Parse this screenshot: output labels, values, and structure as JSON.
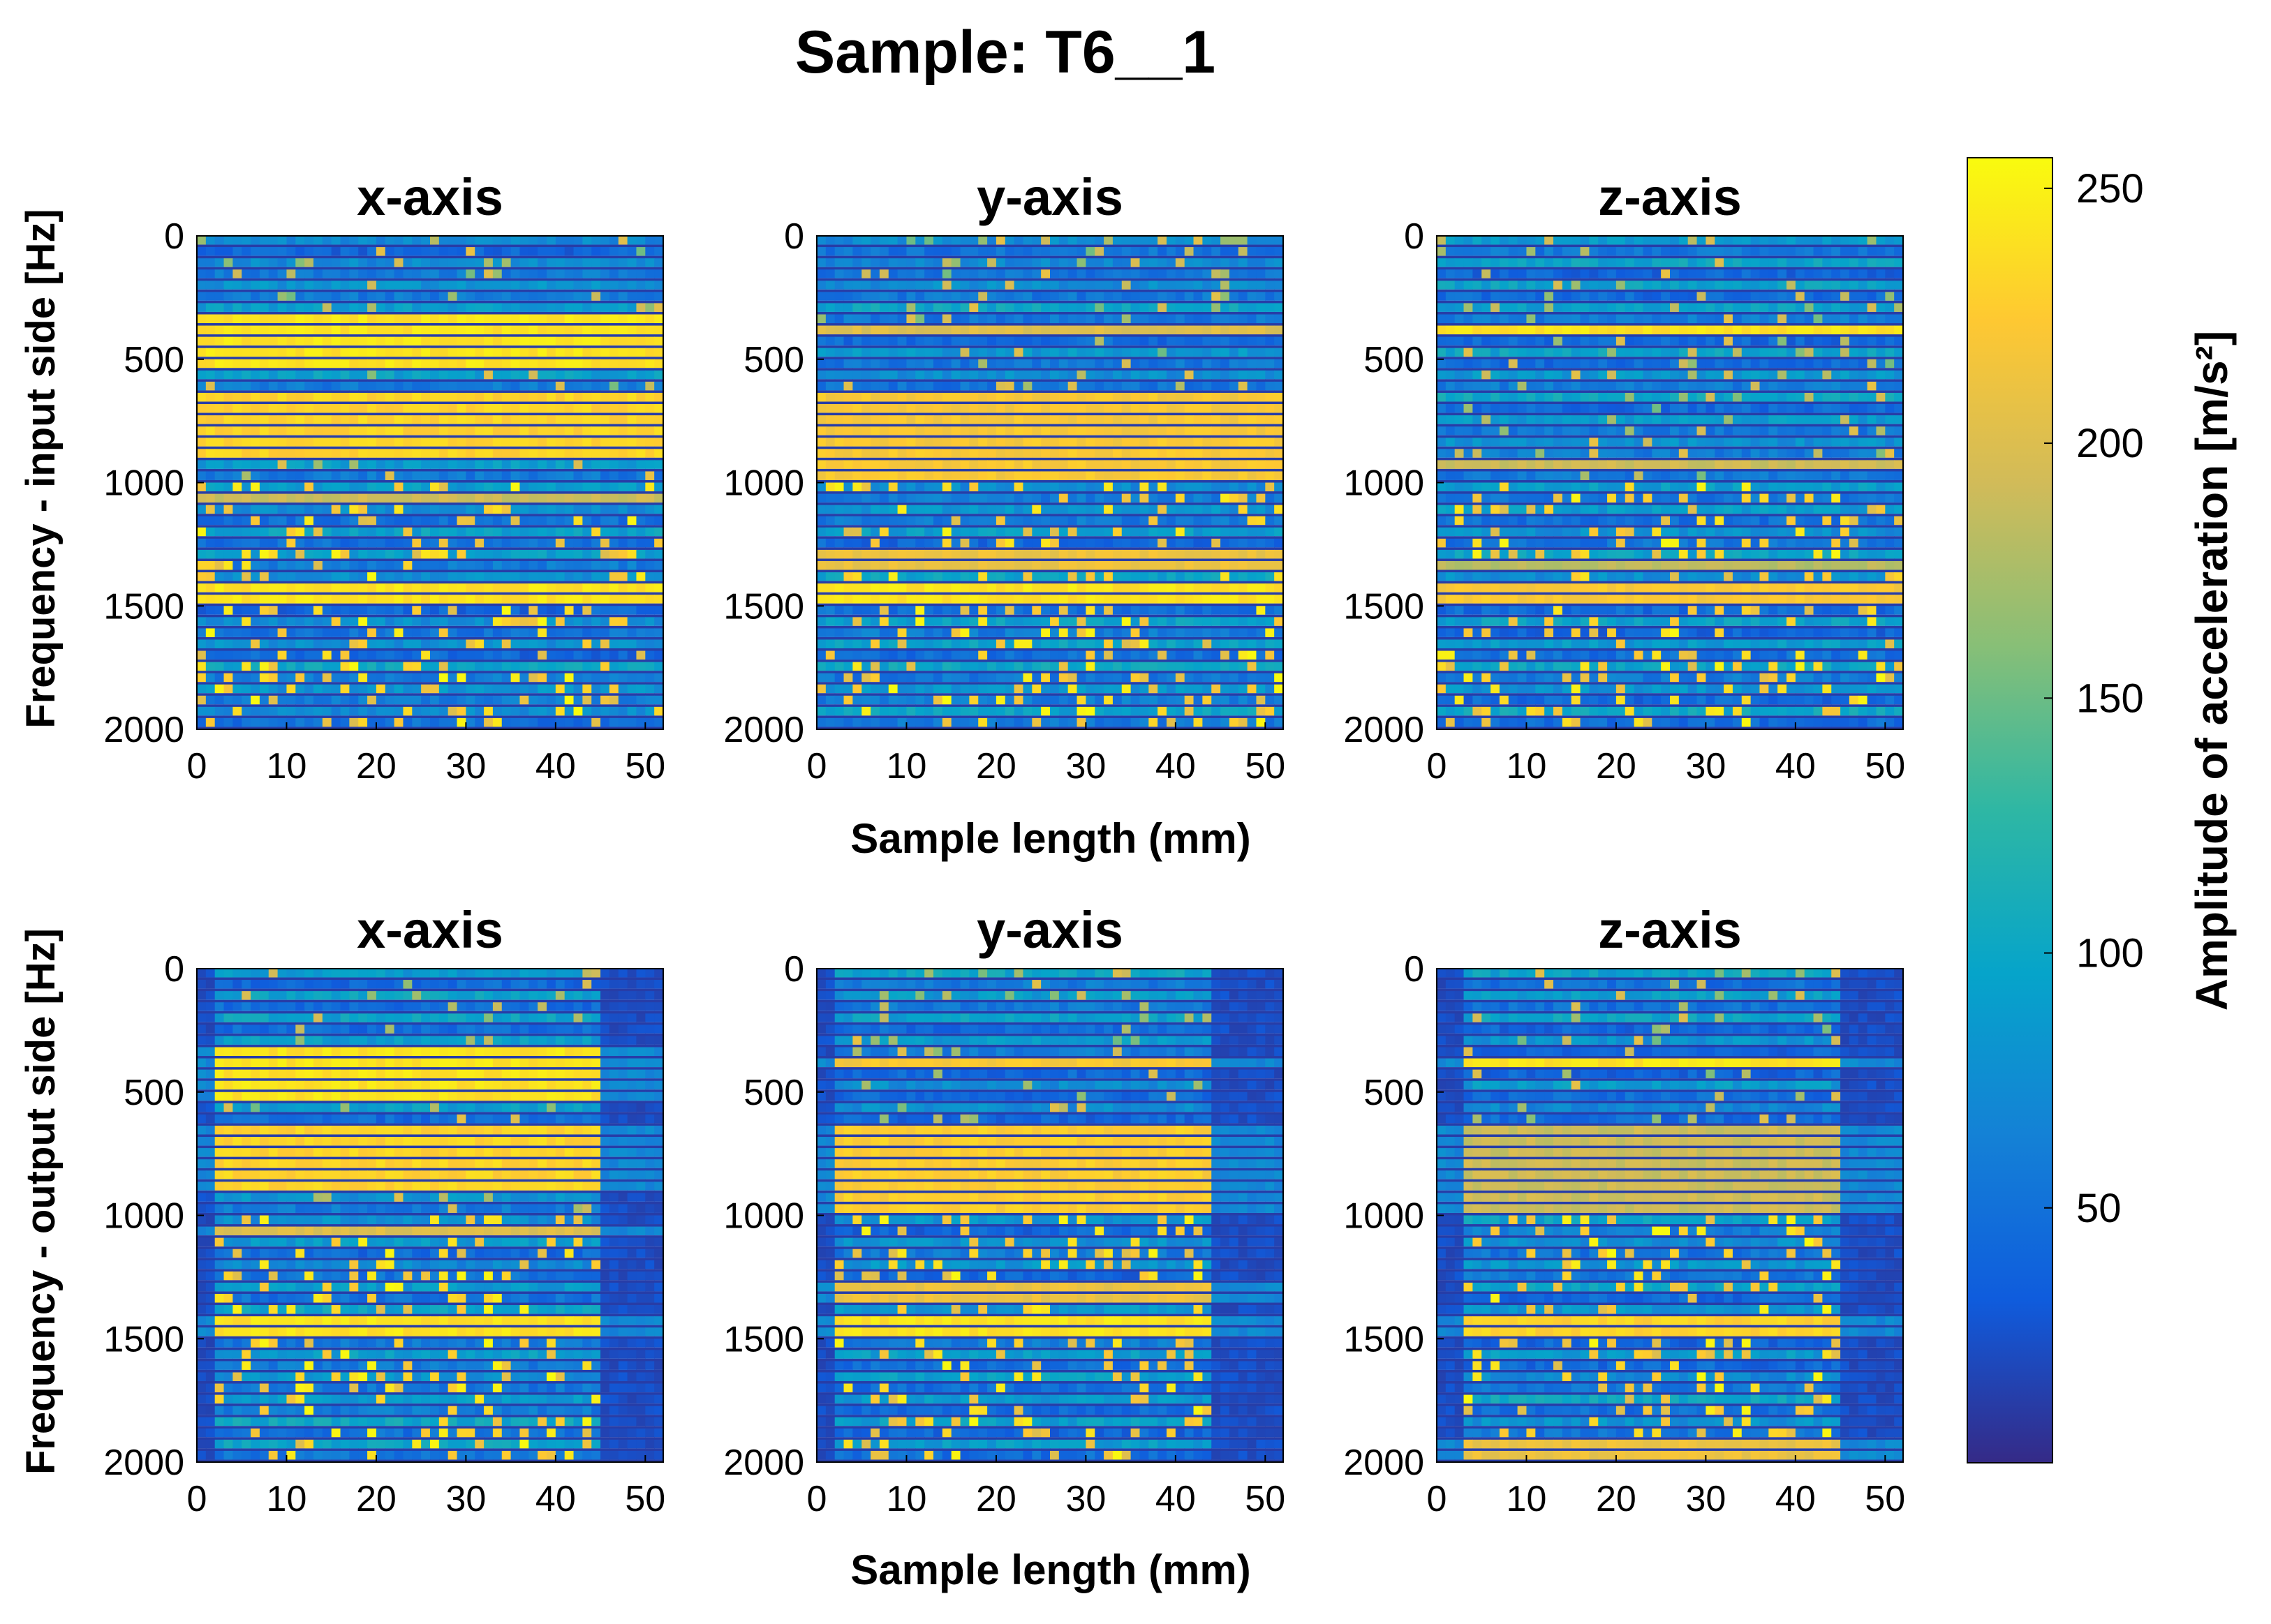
{
  "title": "Sample: T6__1",
  "xlabel": "Sample length (mm)",
  "colorbar": {
    "label": "Amplitude of acceleration [m/s²]",
    "ticks": [
      250,
      200,
      150,
      100,
      50
    ],
    "range": [
      0,
      256
    ],
    "colormap": "parula",
    "stops": [
      "#352a87",
      "#0f5cdd",
      "#1481d6",
      "#06a4ca",
      "#2eb7a4",
      "#87bf77",
      "#d1bb59",
      "#fec832",
      "#f9fb0e"
    ]
  },
  "chart_data": [
    {
      "type": "heatmap",
      "row": "input side",
      "title": "x-axis",
      "ylabel": "Frequency - input side [Hz]",
      "xticks": [
        0,
        10,
        20,
        30,
        40,
        50
      ],
      "yticks": [
        0,
        500,
        1000,
        1500,
        2000
      ],
      "xlim": [
        0,
        52
      ],
      "ylim": [
        0,
        2000
      ],
      "bands": [
        {
          "freq": [
            330,
            560
          ],
          "amplitude": 250
        },
        {
          "freq": [
            640,
            900
          ],
          "amplitude": 240
        },
        {
          "freq": [
            1050,
            1110
          ],
          "amplitude": 200
        },
        {
          "freq": [
            1400,
            1500
          ],
          "amplitude": 250
        }
      ]
    },
    {
      "type": "heatmap",
      "row": "input side",
      "title": "y-axis",
      "xticks": [
        0,
        10,
        20,
        30,
        40,
        50
      ],
      "yticks": [
        0,
        500,
        1000,
        1500,
        2000
      ],
      "xlim": [
        0,
        52
      ],
      "ylim": [
        0,
        2000
      ],
      "bands": [
        {
          "freq": [
            360,
            400
          ],
          "amplitude": 210
        },
        {
          "freq": [
            620,
            1000
          ],
          "amplitude": 230
        },
        {
          "freq": [
            1280,
            1360
          ],
          "amplitude": 220
        },
        {
          "freq": [
            1400,
            1520
          ],
          "amplitude": 250
        }
      ]
    },
    {
      "type": "heatmap",
      "row": "input side",
      "title": "z-axis",
      "xticks": [
        0,
        10,
        20,
        30,
        40,
        50
      ],
      "yticks": [
        0,
        500,
        1000,
        1500,
        2000
      ],
      "xlim": [
        0,
        52
      ],
      "ylim": [
        0,
        2000
      ],
      "bands": [
        {
          "freq": [
            350,
            400
          ],
          "amplitude": 250
        },
        {
          "freq": [
            900,
            960
          ],
          "amplitude": 200
        },
        {
          "freq": [
            1300,
            1350
          ],
          "amplitude": 190
        },
        {
          "freq": [
            1420,
            1500
          ],
          "amplitude": 230
        }
      ]
    },
    {
      "type": "heatmap",
      "row": "output side",
      "title": "x-axis",
      "ylabel": "Frequency - output side [Hz]",
      "xticks": [
        0,
        10,
        20,
        30,
        40,
        50
      ],
      "yticks": [
        0,
        500,
        1000,
        1500,
        2000
      ],
      "xlim": [
        0,
        52
      ],
      "ylim": [
        0,
        2000
      ],
      "active_length": [
        2,
        45
      ],
      "bands": [
        {
          "freq": [
            330,
            560
          ],
          "amplitude": 250
        },
        {
          "freq": [
            640,
            900
          ],
          "amplitude": 240
        },
        {
          "freq": [
            1050,
            1110
          ],
          "amplitude": 210
        },
        {
          "freq": [
            1400,
            1500
          ],
          "amplitude": 250
        }
      ]
    },
    {
      "type": "heatmap",
      "row": "output side",
      "title": "y-axis",
      "xticks": [
        0,
        10,
        20,
        30,
        40,
        50
      ],
      "yticks": [
        0,
        500,
        1000,
        1500,
        2000
      ],
      "xlim": [
        0,
        52
      ],
      "ylim": [
        0,
        2000
      ],
      "active_length": [
        2,
        44
      ],
      "bands": [
        {
          "freq": [
            360,
            400
          ],
          "amplitude": 230
        },
        {
          "freq": [
            640,
            1000
          ],
          "amplitude": 235
        },
        {
          "freq": [
            1280,
            1360
          ],
          "amplitude": 220
        },
        {
          "freq": [
            1400,
            1520
          ],
          "amplitude": 250
        }
      ]
    },
    {
      "type": "heatmap",
      "row": "output side",
      "title": "z-axis",
      "xticks": [
        0,
        10,
        20,
        30,
        40,
        50
      ],
      "yticks": [
        0,
        500,
        1000,
        1500,
        2000
      ],
      "xlim": [
        0,
        52
      ],
      "ylim": [
        0,
        2000
      ],
      "active_length": [
        3,
        45
      ],
      "bands": [
        {
          "freq": [
            360,
            400
          ],
          "amplitude": 250
        },
        {
          "freq": [
            650,
            1000
          ],
          "amplitude": 200
        },
        {
          "freq": [
            1420,
            1500
          ],
          "amplitude": 240
        },
        {
          "freq": [
            1900,
            2000
          ],
          "amplitude": 220
        }
      ]
    }
  ]
}
